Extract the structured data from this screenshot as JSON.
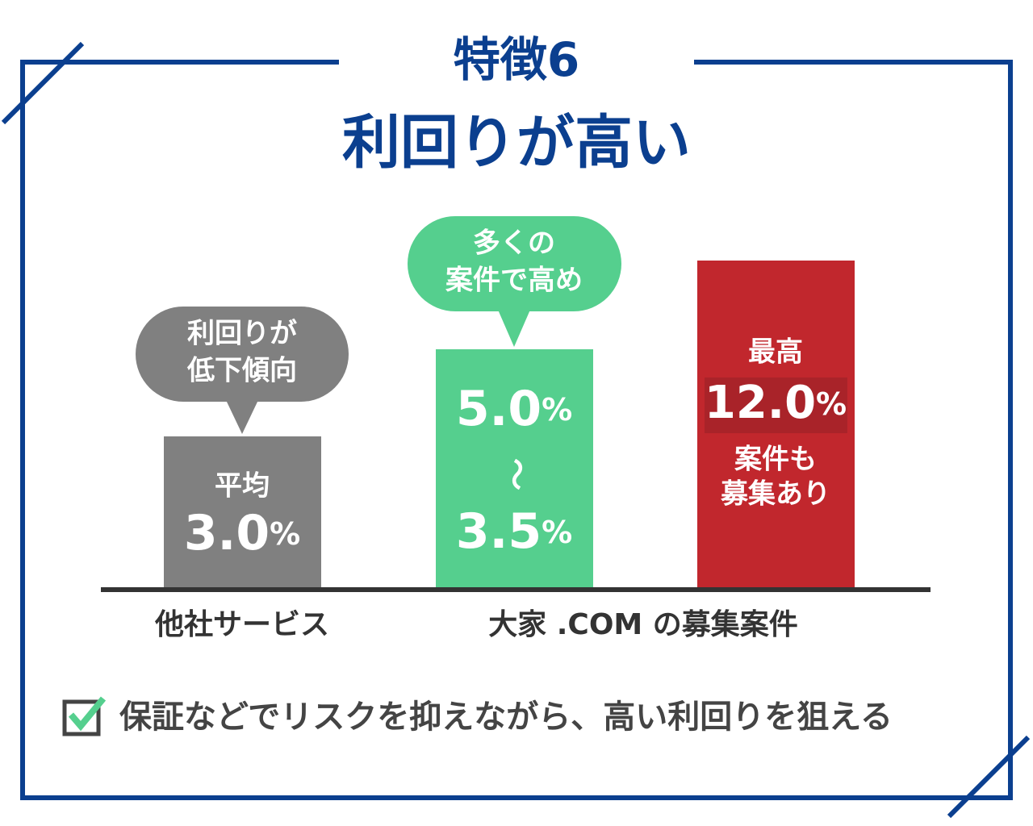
{
  "header": {
    "label": "特徴6",
    "title": "利回りが高い"
  },
  "bars": [
    {
      "bubble": [
        "利回りが",
        "低下傾向"
      ],
      "caption": "平均",
      "value": "3.0",
      "unit": "%"
    },
    {
      "bubble": [
        "多くの",
        "案件で高め"
      ],
      "value_from": "5.0",
      "unit_from": "%",
      "separator": "〜",
      "value_to": "3.5",
      "unit_to": "%"
    },
    {
      "caption": "最高",
      "value": "12.0",
      "unit": "%",
      "note": [
        "案件も",
        "募集あり"
      ]
    }
  ],
  "labels": [
    "他社サービス",
    "大家 .COM の募集案件"
  ],
  "footer": "保証などでリスクを抑えながら、高い利回りを狙える"
}
